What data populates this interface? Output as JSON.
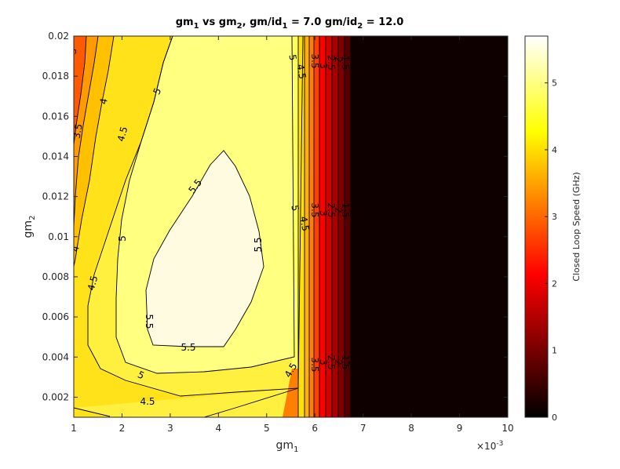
{
  "chart_data": {
    "type": "contour",
    "title": {
      "parts": [
        "gm",
        "1",
        " vs gm",
        "2",
        ", gm/id",
        "1",
        " = 7.0 gm/id",
        "2",
        " = 12.0"
      ]
    },
    "xlabel": {
      "base": "gm",
      "sub": "1"
    },
    "ylabel": {
      "base": "gm",
      "sub": "2"
    },
    "x_exponent": {
      "base": "×10",
      "sup": "-3"
    },
    "xlim": [
      1,
      10
    ],
    "ylim": [
      0.001,
      0.02
    ],
    "x_ticks": [
      "1",
      "2",
      "3",
      "4",
      "5",
      "6",
      "7",
      "8",
      "9",
      "10"
    ],
    "y_ticks": [
      "0.002",
      "0.004",
      "0.006",
      "0.008",
      "0.01",
      "0.012",
      "0.014",
      "0.016",
      "0.018",
      "0.02"
    ],
    "colorbar": {
      "label": "Closed Loop Speed (GHz)",
      "range": [
        0,
        5.7
      ],
      "ticks": [
        "0",
        "1",
        "2",
        "3",
        "4",
        "5"
      ],
      "colormap": "hot"
    },
    "contour_levels": [
      3,
      3.5,
      4,
      4.5,
      5,
      5.5
    ],
    "contour_labels": [
      "3",
      "3.5",
      "4",
      "4.5",
      "5",
      "5.5",
      "5",
      "4.5",
      "3.5",
      "3",
      "2.5",
      "2",
      "1.5",
      "1",
      "0.5"
    ],
    "grid": false
  }
}
